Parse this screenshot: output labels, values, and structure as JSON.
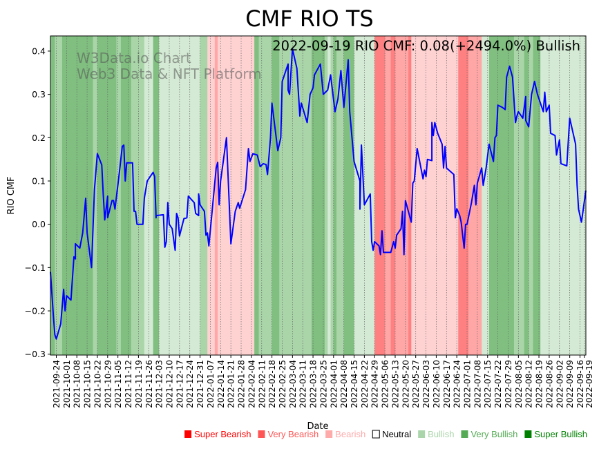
{
  "chart_data": {
    "type": "line",
    "title": "CMF RIO TS",
    "xlabel": "Date",
    "ylabel": "RIO CMF",
    "start_date": "2021-09-20",
    "x_unit": "days since start_date",
    "xlim": [
      0,
      365
    ],
    "ylim": [
      -0.302,
      0.435
    ],
    "yticks": [
      -0.3,
      -0.2,
      -0.1,
      0.0,
      0.1,
      0.2,
      0.3,
      0.4
    ],
    "ytick_labels": [
      "−0.3",
      "−0.2",
      "−0.1",
      "0.0",
      "0.1",
      "0.2",
      "0.3",
      "0.4"
    ],
    "xtick_labels": [
      "2021-09-24",
      "2021-10-01",
      "2021-10-08",
      "2021-10-15",
      "2021-10-22",
      "2021-10-29",
      "2021-11-05",
      "2021-11-12",
      "2021-11-19",
      "2021-11-26",
      "2021-12-03",
      "2021-12-10",
      "2021-12-17",
      "2021-12-24",
      "2021-12-31",
      "2022-01-07",
      "2022-01-14",
      "2022-01-21",
      "2022-01-28",
      "2022-02-04",
      "2022-02-11",
      "2022-02-18",
      "2022-02-25",
      "2022-03-04",
      "2022-03-11",
      "2022-03-18",
      "2022-03-25",
      "2022-04-01",
      "2022-04-08",
      "2022-04-15",
      "2022-04-22",
      "2022-04-29",
      "2022-05-06",
      "2022-05-13",
      "2022-05-20",
      "2022-05-27",
      "2022-06-03",
      "2022-06-10",
      "2022-06-17",
      "2022-06-24",
      "2022-07-01",
      "2022-07-08",
      "2022-07-15",
      "2022-07-22",
      "2022-07-29",
      "2022-08-05",
      "2022-08-12",
      "2022-08-19",
      "2022-08-26",
      "2022-09-02",
      "2022-09-09",
      "2022-09-16",
      "2022-09-19"
    ],
    "annotation": "2022-09-19 RIO CMF: 0.08(+2494.0%) Bullish",
    "watermark": [
      "W3Data.io Chart",
      "Web3 Data & NFT Platform"
    ],
    "series": [
      {
        "name": "RIO CMF",
        "color": "#0000ff",
        "points": [
          [
            0,
            -0.11
          ],
          [
            2,
            -0.21
          ],
          [
            3,
            -0.255
          ],
          [
            4,
            -0.265
          ],
          [
            7,
            -0.23
          ],
          [
            9,
            -0.15
          ],
          [
            10,
            -0.2
          ],
          [
            11,
            -0.165
          ],
          [
            14,
            -0.175
          ],
          [
            16,
            -0.075
          ],
          [
            17,
            -0.08
          ],
          [
            17,
            -0.045
          ],
          [
            20,
            -0.055
          ],
          [
            22,
            -0.02
          ],
          [
            24,
            0.06
          ],
          [
            25,
            -0.02
          ],
          [
            28,
            -0.1
          ],
          [
            30,
            0.08
          ],
          [
            32,
            0.163
          ],
          [
            35,
            0.137
          ],
          [
            36,
            0.07
          ],
          [
            37,
            0.01
          ],
          [
            39,
            0.065
          ],
          [
            39,
            0.015
          ],
          [
            42,
            0.055
          ],
          [
            43,
            0.055
          ],
          [
            44,
            0.035
          ],
          [
            47,
            0.12
          ],
          [
            49,
            0.18
          ],
          [
            50,
            0.183
          ],
          [
            51,
            0.1
          ],
          [
            52,
            0.142
          ],
          [
            56,
            0.142
          ],
          [
            57,
            0.03
          ],
          [
            58,
            0.03
          ],
          [
            59,
            0.0
          ],
          [
            63,
            0.0
          ],
          [
            64,
            0.06
          ],
          [
            66,
            0.1
          ],
          [
            70,
            0.12
          ],
          [
            71,
            0.11
          ],
          [
            72,
            0.015
          ],
          [
            72,
            0.02
          ],
          [
            77,
            0.022
          ],
          [
            78,
            -0.053
          ],
          [
            79,
            -0.04
          ],
          [
            80,
            0.05
          ],
          [
            81,
            0.0
          ],
          [
            83,
            -0.01
          ],
          [
            85,
            -0.06
          ],
          [
            86,
            0.025
          ],
          [
            87,
            0.015
          ],
          [
            88,
            -0.027
          ],
          [
            91,
            0.013
          ],
          [
            93,
            0.015
          ],
          [
            94,
            0.065
          ],
          [
            98,
            0.05
          ],
          [
            99,
            0.025
          ],
          [
            101,
            0.02
          ],
          [
            101,
            0.07
          ],
          [
            102,
            0.045
          ],
          [
            105,
            0.03
          ],
          [
            106,
            -0.025
          ],
          [
            107,
            -0.02
          ],
          [
            108,
            -0.05
          ],
          [
            113,
            0.13
          ],
          [
            114,
            0.143
          ],
          [
            115,
            0.045
          ],
          [
            116,
            0.1
          ],
          [
            120,
            0.2
          ],
          [
            123,
            -0.045
          ],
          [
            126,
            0.03
          ],
          [
            128,
            0.05
          ],
          [
            129,
            0.037
          ],
          [
            133,
            0.08
          ],
          [
            135,
            0.175
          ],
          [
            136,
            0.145
          ],
          [
            138,
            0.163
          ],
          [
            141,
            0.16
          ],
          [
            143,
            0.133
          ],
          [
            145,
            0.14
          ],
          [
            147,
            0.138
          ],
          [
            148,
            0.115
          ],
          [
            150,
            0.2
          ],
          [
            151,
            0.28
          ],
          [
            155,
            0.17
          ],
          [
            157,
            0.2
          ],
          [
            158,
            0.33
          ],
          [
            162,
            0.37
          ],
          [
            162,
            0.31
          ],
          [
            163,
            0.3
          ],
          [
            165,
            0.405
          ],
          [
            168,
            0.36
          ],
          [
            170,
            0.25
          ],
          [
            171,
            0.28
          ],
          [
            175,
            0.235
          ],
          [
            177,
            0.3
          ],
          [
            179,
            0.315
          ],
          [
            180,
            0.345
          ],
          [
            184,
            0.37
          ],
          [
            186,
            0.3
          ],
          [
            189,
            0.31
          ],
          [
            191,
            0.345
          ],
          [
            194,
            0.26
          ],
          [
            196,
            0.29
          ],
          [
            198,
            0.355
          ],
          [
            200,
            0.27
          ],
          [
            203,
            0.38
          ],
          [
            204,
            0.26
          ],
          [
            207,
            0.145
          ],
          [
            211,
            0.1
          ],
          [
            211,
            0.035
          ],
          [
            212,
            0.183
          ],
          [
            214,
            0.045
          ],
          [
            218,
            0.07
          ],
          [
            219,
            -0.04
          ],
          [
            220,
            -0.06
          ],
          [
            221,
            -0.04
          ],
          [
            224,
            -0.05
          ],
          [
            225,
            -0.07
          ],
          [
            226,
            -0.015
          ],
          [
            227,
            -0.065
          ],
          [
            232,
            -0.065
          ],
          [
            234,
            -0.04
          ],
          [
            235,
            -0.055
          ],
          [
            236,
            -0.025
          ],
          [
            239,
            -0.01
          ],
          [
            240,
            0.03
          ],
          [
            241,
            -0.07
          ],
          [
            242,
            0.055
          ],
          [
            246,
            0.005
          ],
          [
            247,
            0.095
          ],
          [
            248,
            0.1
          ],
          [
            250,
            0.175
          ],
          [
            254,
            0.105
          ],
          [
            255,
            0.125
          ],
          [
            256,
            0.11
          ],
          [
            257,
            0.15
          ],
          [
            260,
            0.147
          ],
          [
            260,
            0.235
          ],
          [
            261,
            0.205
          ],
          [
            262,
            0.235
          ],
          [
            264,
            0.21
          ],
          [
            267,
            0.185
          ],
          [
            268,
            0.13
          ],
          [
            269,
            0.18
          ],
          [
            270,
            0.13
          ],
          [
            275,
            0.115
          ],
          [
            276,
            0.015
          ],
          [
            277,
            0.036
          ],
          [
            279,
            0.02
          ],
          [
            280,
            0.005
          ],
          [
            282,
            -0.055
          ],
          [
            283,
            0.0
          ],
          [
            284,
            0.0
          ],
          [
            287,
            0.05
          ],
          [
            289,
            0.09
          ],
          [
            290,
            0.045
          ],
          [
            291,
            0.095
          ],
          [
            294,
            0.13
          ],
          [
            295,
            0.09
          ],
          [
            297,
            0.13
          ],
          [
            299,
            0.185
          ],
          [
            302,
            0.145
          ],
          [
            303,
            0.2
          ],
          [
            304,
            0.205
          ],
          [
            305,
            0.275
          ],
          [
            308,
            0.27
          ],
          [
            310,
            0.265
          ],
          [
            311,
            0.34
          ],
          [
            313,
            0.365
          ],
          [
            315,
            0.34
          ],
          [
            317,
            0.235
          ],
          [
            318,
            0.25
          ],
          [
            319,
            0.26
          ],
          [
            322,
            0.245
          ],
          [
            324,
            0.295
          ],
          [
            324,
            0.24
          ],
          [
            326,
            0.225
          ],
          [
            328,
            0.3
          ],
          [
            330,
            0.33
          ],
          [
            332,
            0.3
          ],
          [
            336,
            0.26
          ],
          [
            337,
            0.305
          ],
          [
            338,
            0.26
          ],
          [
            340,
            0.275
          ],
          [
            341,
            0.21
          ],
          [
            344,
            0.205
          ],
          [
            345,
            0.16
          ],
          [
            347,
            0.195
          ],
          [
            348,
            0.14
          ],
          [
            352,
            0.135
          ],
          [
            354,
            0.245
          ],
          [
            358,
            0.185
          ],
          [
            359,
            0.09
          ],
          [
            360,
            0.035
          ],
          [
            362,
            0.005
          ],
          [
            365,
            0.078
          ]
        ]
      }
    ],
    "sentiment_bands": [
      [
        0,
        3,
        3
      ],
      [
        3,
        8,
        2
      ],
      [
        8,
        29,
        3
      ],
      [
        29,
        32,
        2
      ],
      [
        32,
        45,
        3
      ],
      [
        45,
        48,
        2
      ],
      [
        48,
        55,
        3
      ],
      [
        55,
        64,
        2
      ],
      [
        64,
        70,
        1
      ],
      [
        70,
        74,
        3
      ],
      [
        74,
        102,
        1
      ],
      [
        102,
        107,
        2
      ],
      [
        107,
        112,
        -1
      ],
      [
        112,
        114,
        -2
      ],
      [
        114,
        139,
        -1
      ],
      [
        139,
        142,
        3
      ],
      [
        142,
        151,
        2
      ],
      [
        151,
        156,
        3
      ],
      [
        156,
        178,
        2
      ],
      [
        178,
        187,
        3
      ],
      [
        187,
        189,
        2
      ],
      [
        189,
        191,
        1
      ],
      [
        191,
        193,
        2
      ],
      [
        193,
        195,
        3
      ],
      [
        195,
        200,
        2
      ],
      [
        200,
        207,
        3
      ],
      [
        207,
        221,
        1
      ],
      [
        221,
        228,
        -3
      ],
      [
        228,
        232,
        -2
      ],
      [
        232,
        235,
        -3
      ],
      [
        235,
        244,
        -2
      ],
      [
        244,
        246,
        -3
      ],
      [
        246,
        278,
        -1
      ],
      [
        278,
        285,
        -3
      ],
      [
        285,
        294,
        -2
      ],
      [
        294,
        299,
        1
      ],
      [
        299,
        316,
        3
      ],
      [
        316,
        323,
        2
      ],
      [
        323,
        326,
        3
      ],
      [
        326,
        329,
        2
      ],
      [
        329,
        334,
        3
      ],
      [
        334,
        365,
        1
      ]
    ],
    "band_colors": {
      "-3": "#ff8080",
      "-2": "#ffa6a6",
      "-1": "#ffd2d2",
      "0": "#ffffff",
      "1": "#d4ead4",
      "2": "#a9d5a9",
      "3": "#80bf80"
    },
    "legend": [
      {
        "label": "Super Bearish",
        "color": "#ff0000",
        "text_color": "#ff0000"
      },
      {
        "label": "Very Bearish",
        "color": "#ff5555",
        "text_color": "#ff5555"
      },
      {
        "label": "Bearish",
        "color": "#ffaaaa",
        "text_color": "#ffaaaa"
      },
      {
        "label": "Neutral",
        "color": "#ffffff",
        "text_color": "#000000"
      },
      {
        "label": "Bullish",
        "color": "#aad5aa",
        "text_color": "#aad5aa"
      },
      {
        "label": "Very Bullish",
        "color": "#55aa55",
        "text_color": "#55aa55"
      },
      {
        "label": "Super Bullish",
        "color": "#008000",
        "text_color": "#008000"
      }
    ],
    "legend_placement": "bottom-right"
  }
}
